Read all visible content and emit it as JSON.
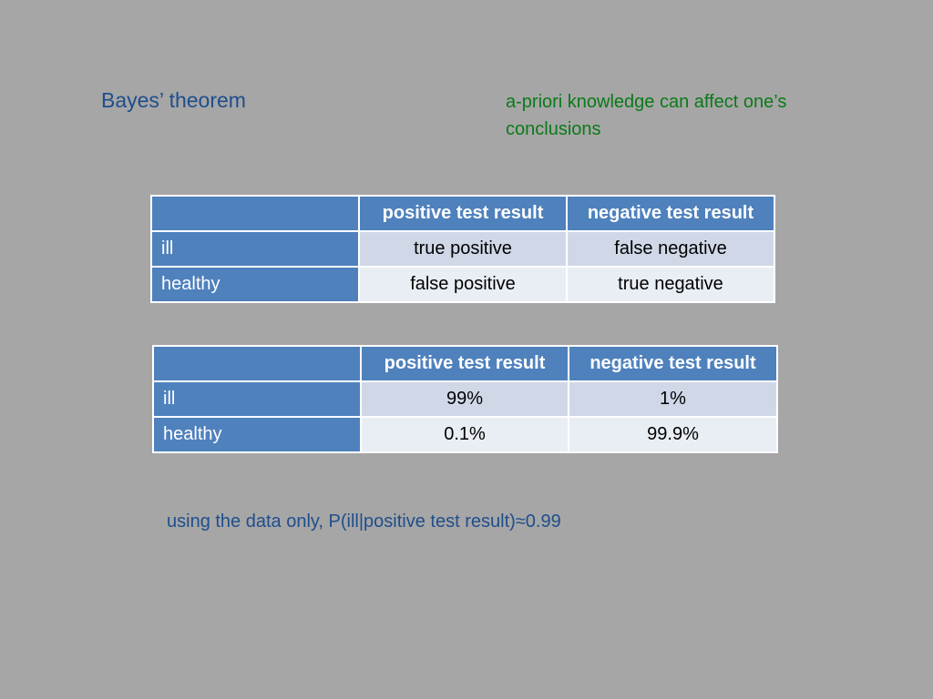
{
  "slide": {
    "title": "Bayes’ theorem",
    "note": "a-priori knowledge can affect one’s conclusions",
    "conclusion": "using the data only, P(ill|positive test result)≈0.99"
  },
  "tables": [
    {
      "corner": "",
      "headers": [
        "positive test result",
        "negative test result"
      ],
      "rows": [
        {
          "label": "ill",
          "cells": [
            "true positive",
            "false negative"
          ]
        },
        {
          "label": "healthy",
          "cells": [
            "false positive",
            "true negative"
          ]
        }
      ]
    },
    {
      "corner": "",
      "headers": [
        "positive test result",
        "negative test result"
      ],
      "rows": [
        {
          "label": "ill",
          "cells": [
            "99%",
            "1%"
          ]
        },
        {
          "label": "healthy",
          "cells": [
            "0.1%",
            "99.9%"
          ]
        }
      ]
    }
  ],
  "colors": {
    "background": "#a6a6a6",
    "header_fill": "#4f81bd",
    "band_dark": "#d0d8e8",
    "band_light": "#e9edf4",
    "title_text": "#1f4e8c",
    "note_text": "#0a7a18"
  }
}
